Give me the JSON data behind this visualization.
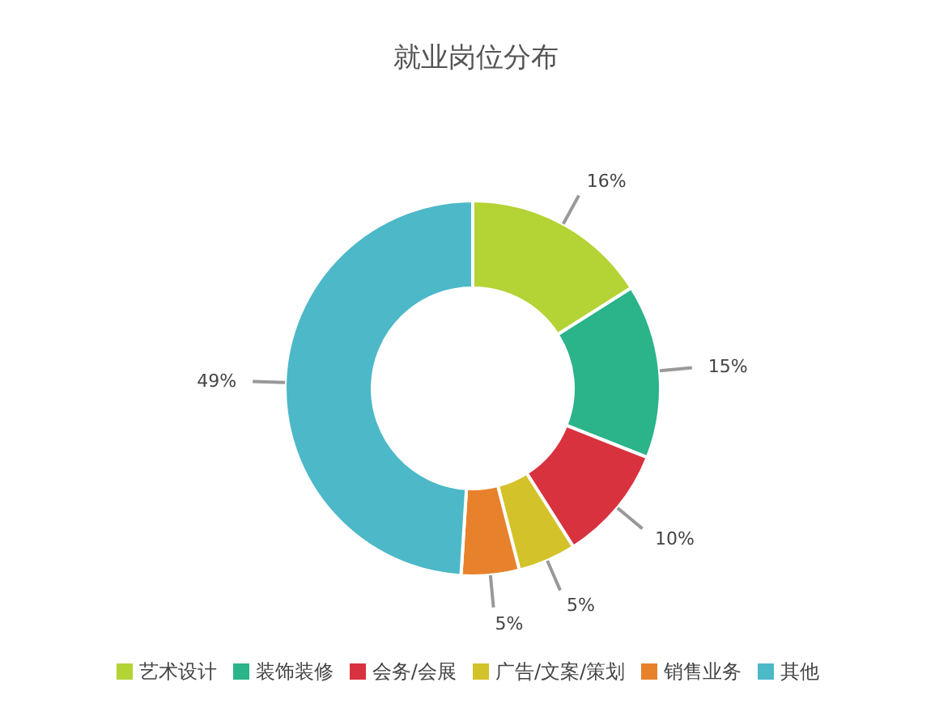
{
  "chart_data": {
    "type": "donut",
    "title": "就业岗位分布",
    "categories": [
      "艺术设计",
      "装饰装修",
      "会务/会展",
      "广告/文案/策划",
      "销售业务",
      "其他"
    ],
    "values": [
      16,
      15,
      10,
      5,
      5,
      49
    ],
    "value_labels": [
      "16%",
      "15%",
      "10%",
      "5%",
      "5%",
      "49%"
    ],
    "colors": [
      "#b4d335",
      "#2bb38a",
      "#d8323f",
      "#d4c22a",
      "#e8812c",
      "#4cb8c8"
    ],
    "legend": "bottom"
  }
}
